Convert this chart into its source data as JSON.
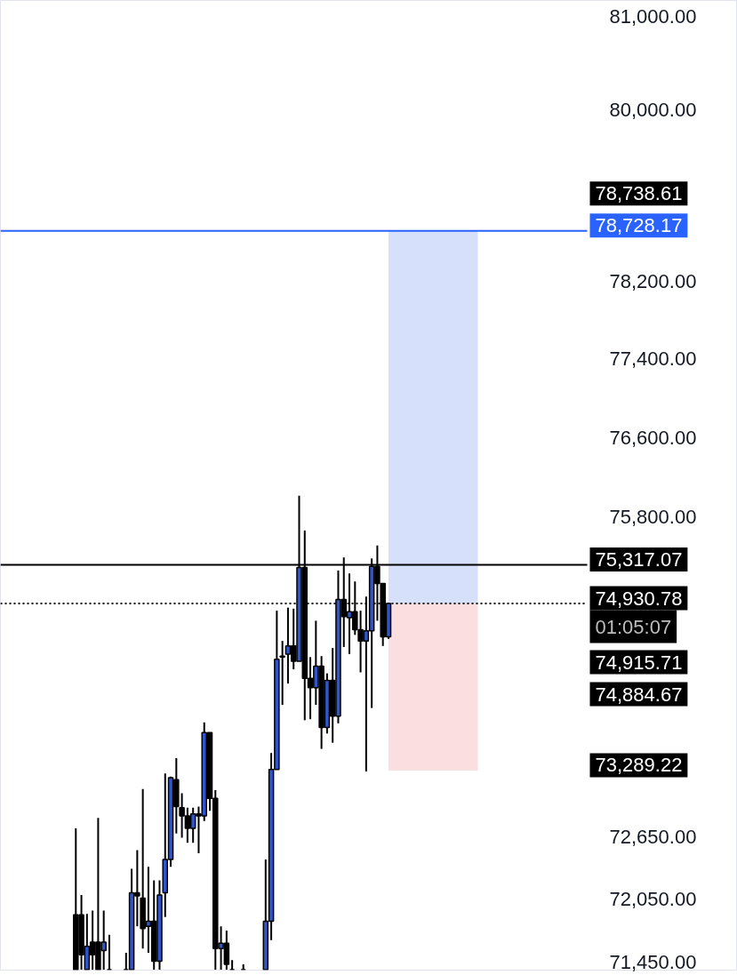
{
  "chart_data": {
    "type": "candlestick",
    "log": true,
    "grid": false,
    "tick_labels": "y",
    "categories": [
      null,
      null,
      null,
      null,
      null,
      null,
      null,
      null,
      null,
      null,
      null,
      null,
      null,
      null,
      null,
      null,
      null,
      null,
      null,
      null,
      null,
      null,
      null,
      null,
      null,
      null,
      null,
      null,
      null,
      null,
      null,
      null,
      null,
      null,
      null,
      null,
      null,
      null,
      null,
      null,
      null,
      null,
      null,
      null,
      null,
      null,
      null,
      null,
      null,
      null,
      null,
      null,
      null,
      null,
      null,
      null,
      null,
      null,
      null,
      null,
      null,
      null,
      null,
      null,
      null,
      null,
      null,
      null,
      null,
      null,
      null,
      null,
      null,
      null,
      null,
      null,
      null,
      null,
      null,
      null,
      null,
      null,
      null,
      null,
      null,
      null,
      null,
      null,
      null,
      null,
      null,
      null,
      null,
      null,
      null,
      null,
      null,
      null,
      null,
      null,
      null,
      null,
      null,
      null,
      null,
      null,
      null,
      null,
      null,
      null,
      null,
      null,
      null,
      null,
      null,
      null,
      null,
      null,
      null,
      null,
      null,
      null,
      null,
      null,
      null,
      null,
      null,
      null,
      null,
      null,
      null,
      null
    ],
    "ohlc": [
      null,
      null,
      null,
      null,
      null,
      null,
      null,
      null,
      null,
      null,
      null,
      null,
      null,
      [
        71900,
        72730,
        71380,
        71380
      ],
      [
        71900,
        72090,
        71380,
        71520
      ],
      [
        71380,
        71910,
        71380,
        71600
      ],
      [
        71640,
        71940,
        71380,
        71520
      ],
      [
        71640,
        72830,
        71380,
        71380
      ],
      [
        71560,
        71940,
        71380,
        71640
      ],
      [
        71380,
        71710,
        71380,
        71380
      ],
      null,
      null,
      [
        71380,
        71540,
        71380,
        71380
      ],
      [
        71380,
        72340,
        71380,
        72110
      ],
      [
        72110,
        72520,
        71790,
        72080
      ],
      [
        72060,
        73110,
        71580,
        71770
      ],
      [
        71790,
        72360,
        71540,
        71840
      ],
      [
        71840,
        72230,
        71380,
        71460
      ],
      [
        71460,
        72230,
        71380,
        72090
      ],
      [
        72110,
        73260,
        71880,
        72430
      ],
      [
        72430,
        73230,
        72360,
        73220
      ],
      [
        73200,
        73410,
        72680,
        72940
      ],
      [
        72930,
        73070,
        72640,
        72850
      ],
      [
        72850,
        72930,
        72590,
        72730
      ],
      [
        72730,
        72930,
        72590,
        72870
      ],
      [
        72870,
        72940,
        72490,
        72850
      ],
      [
        72850,
        73760,
        72800,
        73660
      ],
      [
        73660,
        73660,
        72900,
        73020
      ],
      [
        73020,
        73100,
        71380,
        71580
      ],
      [
        71580,
        71790,
        71380,
        71630
      ],
      [
        71630,
        71750,
        71380,
        71430
      ],
      [
        71380,
        71470,
        71380,
        71380
      ],
      null,
      [
        71380,
        71430,
        71380,
        71380
      ],
      null,
      null,
      null,
      [
        71380,
        72430,
        71380,
        71840
      ],
      [
        71840,
        73460,
        71660,
        73300
      ],
      [
        73300,
        74860,
        73300,
        74380
      ],
      [
        74400,
        74560,
        73930,
        74410
      ],
      [
        74430,
        74890,
        74140,
        74510
      ],
      [
        74510,
        74880,
        74280,
        74360
      ],
      [
        74360,
        76010,
        74360,
        75290
      ],
      [
        75290,
        75660,
        73780,
        74190
      ],
      [
        74190,
        74400,
        73790,
        74100
      ],
      [
        74100,
        74760,
        73930,
        74310
      ],
      [
        74310,
        74410,
        73500,
        73710
      ],
      [
        73710,
        74240,
        73650,
        74170
      ],
      [
        74170,
        74490,
        73560,
        73820
      ],
      [
        73820,
        75260,
        73750,
        74970
      ],
      [
        74970,
        75390,
        74500,
        74800
      ],
      [
        74790,
        75230,
        74430,
        74850
      ],
      [
        74850,
        75150,
        74620,
        74670
      ],
      [
        74670,
        74860,
        74250,
        74560
      ],
      [
        74560,
        75000,
        73280,
        74660
      ],
      [
        74660,
        75380,
        73900,
        75300
      ],
      [
        75300,
        75510,
        74760,
        75130
      ],
      [
        75130,
        75130,
        74510,
        74600
      ],
      [
        74600,
        74940,
        74580,
        74930.78
      ],
      null,
      null,
      null,
      null,
      null,
      null,
      null,
      null,
      null,
      null,
      null,
      null,
      null,
      null,
      null,
      null,
      null,
      null,
      null,
      null,
      null,
      null,
      null,
      null,
      null,
      null,
      null,
      null,
      null,
      null,
      null,
      null,
      null,
      null,
      null,
      null,
      null,
      null,
      null,
      null,
      null,
      null,
      null,
      null,
      null,
      null,
      null,
      null,
      null,
      null,
      null,
      null,
      null,
      null,
      null,
      null,
      null,
      null,
      null,
      null,
      null,
      null
    ],
    "colors": [
      null,
      null,
      null,
      null,
      null,
      null,
      null,
      null,
      null,
      null,
      null,
      null,
      null,
      "#000000",
      "#000000",
      "#3056c9",
      "#000000",
      "#000000",
      "#3056c9",
      "#000000",
      null,
      null,
      "#000000",
      "#3056c9",
      "#000000",
      "#000000",
      "#3056c9",
      "#000000",
      "#3056c9",
      "#3056c9",
      "#3056c9",
      "#000000",
      "#000000",
      "#000000",
      "#3056c9",
      "#000000",
      "#3056c9",
      "#000000",
      "#000000",
      "#3056c9",
      "#000000",
      "#000000",
      null,
      "#000000",
      null,
      null,
      null,
      "#3056c9",
      "#3056c9",
      "#3056c9",
      "#3056c9",
      "#3056c9",
      "#000000",
      "#3056c9",
      "#000000",
      "#000000",
      "#3056c9",
      "#000000",
      "#3056c9",
      "#000000",
      "#3056c9",
      "#000000",
      "#3056c9",
      "#000000",
      "#000000",
      "#3056c9",
      "#3056c9",
      "#000000",
      "#000000",
      "#3056c9",
      null,
      null,
      null,
      null,
      null,
      null,
      null,
      null,
      null,
      null,
      null,
      null,
      null,
      null,
      null,
      null,
      null,
      null,
      null,
      null,
      null,
      null,
      null,
      null,
      null,
      null,
      null,
      null,
      null,
      null,
      null,
      null,
      null,
      null,
      null,
      null,
      null,
      null,
      null,
      null,
      null,
      null,
      null,
      null,
      null,
      null,
      null,
      null,
      null,
      null,
      null,
      null,
      null,
      null,
      null,
      null,
      null,
      null,
      null,
      null,
      null,
      null
    ],
    "ylim": [
      71375,
      81170
    ],
    "yticks": [
      {
        "value": 81000,
        "label": "81,000.00"
      },
      {
        "value": 80000,
        "label": "80,000.00"
      },
      {
        "value": 78200,
        "label": "78,200.00"
      },
      {
        "value": 77400,
        "label": "77,400.00"
      },
      {
        "value": 76600,
        "label": "76,600.00"
      },
      {
        "value": 75800,
        "label": "75,800.00"
      },
      {
        "value": 72650,
        "label": "72,650.00"
      },
      {
        "value": 72050,
        "label": "72,050.00"
      },
      {
        "value": 71450,
        "label": "71,450.00"
      }
    ],
    "ref_lines": [
      {
        "axis": "y",
        "value": 78728.17,
        "label": "78,728.17",
        "color": "#2962ff",
        "line_style": "solid"
      },
      {
        "axis": "y",
        "value": 75317.07,
        "label": "75,317.07",
        "color": "#000000",
        "line_style": "solid"
      },
      {
        "axis": "y",
        "value": 74930.78,
        "label": "74,930.78",
        "color": "#000000",
        "line_style": "dotted"
      }
    ],
    "bands": [
      {
        "axis": "y",
        "from": 74930.78,
        "to": 78728.17,
        "color": "#d3ddf9"
      },
      {
        "axis": "y",
        "from": 73289.22,
        "to": 74930.78,
        "color": "#fadadd"
      }
    ],
    "annotations": [
      "01:05:07",
      "78,738.61",
      "74,915.71",
      "74,884.67",
      "73,289.22"
    ]
  }
}
